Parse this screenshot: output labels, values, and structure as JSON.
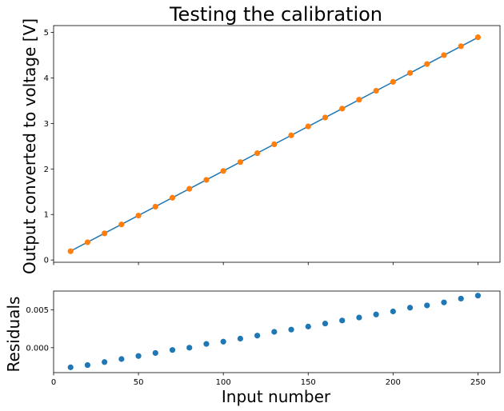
{
  "chart_data": [
    {
      "type": "line",
      "title": "Testing the calibration",
      "xlabel": "",
      "ylabel": "Output converted to voltage [V]",
      "xlim": [
        0,
        263
      ],
      "ylim": [
        -0.05,
        5.15
      ],
      "xticks": [
        0,
        50,
        100,
        150,
        200,
        250
      ],
      "yticks": [
        0,
        1,
        2,
        3,
        4,
        5
      ],
      "ytick_labels": [
        "0",
        "1",
        "2",
        "3",
        "4",
        "5"
      ],
      "grid": false,
      "series": [
        {
          "kind": "line",
          "color": "#1f77b4",
          "x": [
            10,
            250
          ],
          "y": [
            0.196,
            4.89
          ]
        },
        {
          "kind": "scatter",
          "color": "#ff7f0e",
          "x": [
            10,
            20,
            30,
            40,
            50,
            60,
            70,
            80,
            90,
            100,
            110,
            120,
            130,
            140,
            150,
            160,
            170,
            180,
            190,
            200,
            210,
            220,
            230,
            240,
            250
          ],
          "y": [
            0.193,
            0.389,
            0.585,
            0.781,
            0.977,
            1.172,
            1.368,
            1.564,
            1.76,
            1.956,
            2.151,
            2.347,
            2.543,
            2.739,
            2.935,
            3.13,
            3.326,
            3.522,
            3.718,
            3.914,
            4.109,
            4.305,
            4.501,
            4.697,
            4.893
          ]
        }
      ]
    },
    {
      "type": "scatter",
      "title": "",
      "xlabel": "Input number",
      "ylabel": "Residuals",
      "xlim": [
        0,
        263
      ],
      "ylim": [
        -0.0033,
        0.0075
      ],
      "xticks": [
        0,
        50,
        100,
        150,
        200,
        250
      ],
      "xtick_labels": [
        "0",
        "50",
        "100",
        "150",
        "200",
        "250"
      ],
      "yticks": [
        0.0,
        0.005
      ],
      "ytick_labels": [
        "0.000",
        "0.005"
      ],
      "grid": false,
      "series": [
        {
          "kind": "scatter",
          "color": "#1f77b4",
          "x": [
            10,
            20,
            30,
            40,
            50,
            60,
            70,
            80,
            90,
            100,
            110,
            120,
            130,
            140,
            150,
            160,
            170,
            180,
            190,
            200,
            210,
            220,
            230,
            240,
            250
          ],
          "y": [
            -0.0026,
            -0.0023,
            -0.0019,
            -0.0015,
            -0.0011,
            -0.0007,
            -0.0003,
            0.0,
            0.0005,
            0.0008,
            0.0012,
            0.0016,
            0.0021,
            0.0024,
            0.0028,
            0.0032,
            0.0036,
            0.004,
            0.0044,
            0.0048,
            0.0053,
            0.0056,
            0.006,
            0.0065,
            0.0069
          ]
        }
      ]
    }
  ]
}
